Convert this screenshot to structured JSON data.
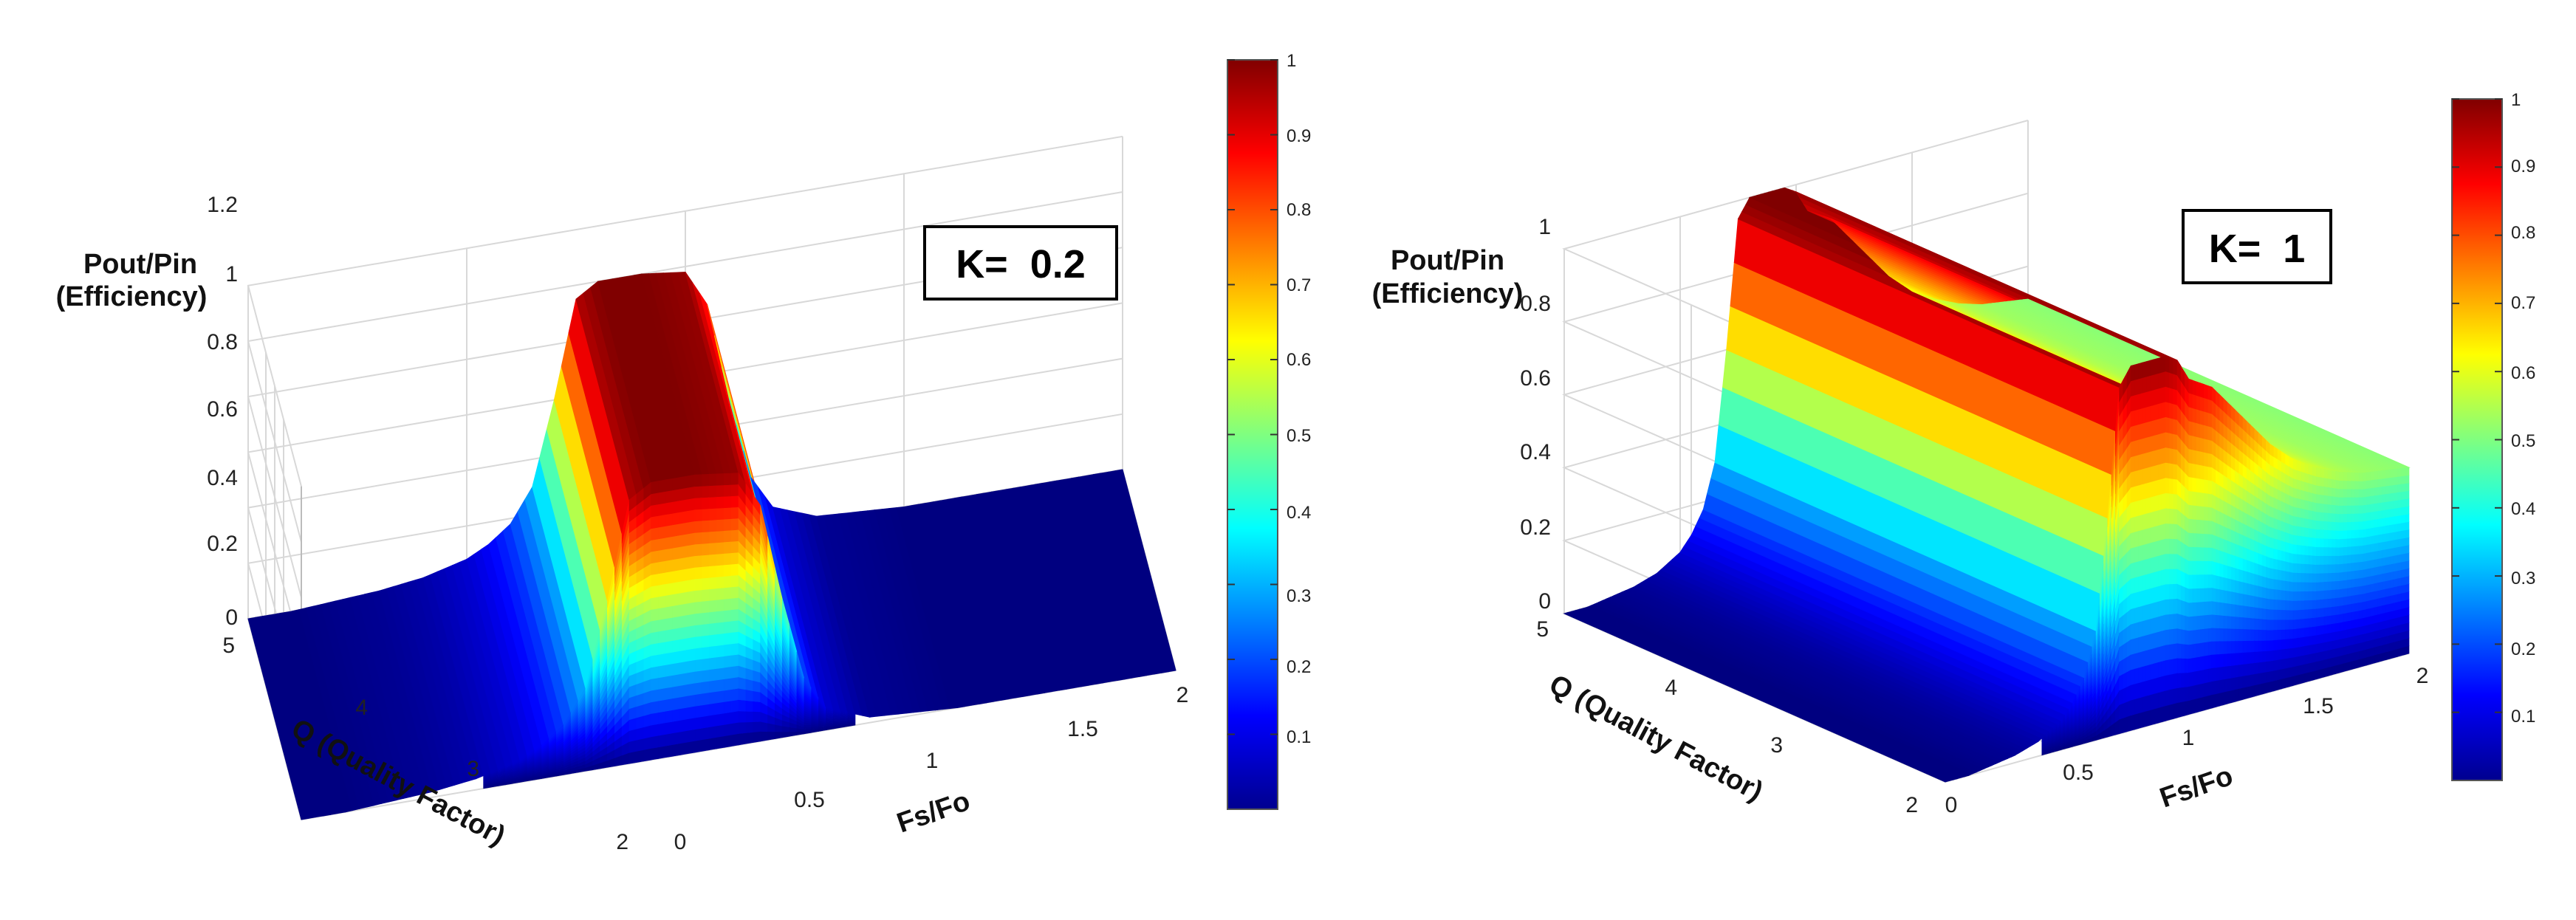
{
  "chart_data": [
    {
      "type": "surface3d",
      "annotation": "K=  0.2",
      "zlabel_line1": "Pout/Pin",
      "zlabel_line2": "(Efficiency)",
      "xlabel": "Fs/Fo",
      "ylabel": "Q (Quality Factor)",
      "xlim": [
        0,
        2
      ],
      "ylim": [
        2,
        5
      ],
      "zlim": [
        0,
        1.2
      ],
      "xticks": [
        "0",
        "0.5",
        "1",
        "1.5",
        "2"
      ],
      "yticks": [
        "2",
        "3",
        "4",
        "5"
      ],
      "zticks": [
        "0",
        "0.2",
        "0.4",
        "0.6",
        "0.8",
        "1",
        "1.2"
      ],
      "colorbar_ticks": [
        "0.1",
        "0.2",
        "0.3",
        "0.4",
        "0.5",
        "0.6",
        "0.7",
        "0.8",
        "0.9",
        "1"
      ],
      "surface_profile": {
        "x": [
          0.0,
          0.1,
          0.2,
          0.3,
          0.4,
          0.5,
          0.55,
          0.6,
          0.65,
          0.7,
          0.75,
          0.8,
          0.85,
          0.9,
          0.95,
          1.0,
          1.05,
          1.1,
          1.15,
          1.2,
          1.3,
          1.4,
          1.5,
          1.6,
          1.7,
          1.8,
          1.9,
          2.0
        ],
        "z": [
          0.0,
          0.0,
          0.01,
          0.02,
          0.04,
          0.08,
          0.12,
          0.18,
          0.3,
          0.6,
          0.95,
          1.0,
          1.0,
          1.0,
          0.99,
          0.98,
          0.85,
          0.5,
          0.2,
          0.08,
          0.02,
          0.01,
          0.0,
          0.0,
          0.0,
          0.0,
          0.0,
          0.0
        ]
      }
    },
    {
      "type": "surface3d",
      "annotation": "K=  1",
      "zlabel_line1": "Pout/Pin",
      "zlabel_line2": "(Efficiency)",
      "xlabel": "Fs/Fo",
      "ylabel": "Q (Quality Factor)",
      "xlim": [
        0,
        2
      ],
      "ylim": [
        2,
        5
      ],
      "zlim": [
        0,
        1
      ],
      "xticks": [
        "0",
        "0.5",
        "1",
        "1.5",
        "2"
      ],
      "yticks": [
        "2",
        "3",
        "4",
        "5"
      ],
      "zticks": [
        "0",
        "0.2",
        "0.4",
        "0.6",
        "0.8",
        "1"
      ],
      "colorbar_ticks": [
        "0.1",
        "0.2",
        "0.3",
        "0.4",
        "0.5",
        "0.6",
        "0.7",
        "0.8",
        "0.9",
        "1"
      ],
      "surface_profile": {
        "x": [
          0.0,
          0.1,
          0.2,
          0.3,
          0.4,
          0.5,
          0.55,
          0.6,
          0.65,
          0.7,
          0.75,
          0.8,
          0.85,
          0.9,
          0.95,
          1.0,
          1.05,
          1.1,
          1.15,
          1.2,
          1.3,
          1.4,
          1.5,
          1.6,
          1.7,
          1.8,
          1.9,
          2.0
        ],
        "z": [
          0.0,
          0.0,
          0.01,
          0.02,
          0.04,
          0.08,
          0.12,
          0.18,
          0.3,
          0.6,
          0.95,
          1.0,
          1.0,
          1.0,
          1.0,
          0.98,
          0.92,
          0.9,
          0.88,
          0.84,
          0.76,
          0.68,
          0.62,
          0.58,
          0.55,
          0.53,
          0.52,
          0.51
        ]
      }
    }
  ]
}
